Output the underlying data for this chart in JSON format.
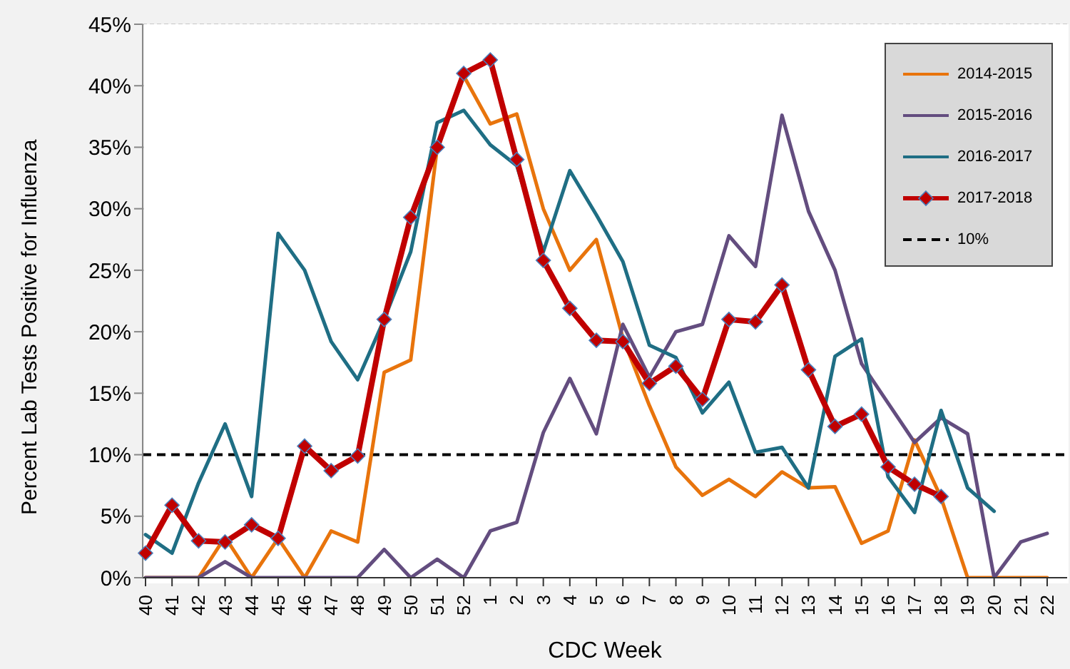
{
  "chart_data": {
    "type": "line",
    "xlabel": "CDC Week",
    "ylabel": "Percent Lab Tests Positive for Influenza",
    "categories": [
      "40",
      "41",
      "42",
      "43",
      "44",
      "45",
      "46",
      "47",
      "48",
      "49",
      "50",
      "51",
      "52",
      "1",
      "2",
      "3",
      "4",
      "5",
      "6",
      "7",
      "8",
      "9",
      "10",
      "11",
      "12",
      "13",
      "14",
      "15",
      "16",
      "17",
      "18",
      "19",
      "20",
      "21",
      "22"
    ],
    "series": [
      {
        "name": "2014-2015",
        "color": "#e8740c",
        "values": [
          0,
          0,
          0,
          3.3,
          0,
          3.2,
          0,
          3.8,
          2.9,
          16.7,
          17.7,
          35,
          40.8,
          36.9,
          37.7,
          30,
          25,
          27.5,
          19.5,
          14,
          9,
          6.7,
          8,
          6.6,
          8.6,
          7.3,
          7.4,
          2.8,
          3.8,
          11.2,
          6.5,
          0,
          0,
          0,
          0
        ]
      },
      {
        "name": "2015-2016",
        "color": "#634d7f",
        "values": [
          0,
          0,
          0,
          1.3,
          0,
          0,
          0,
          0,
          0,
          2.3,
          0,
          1.5,
          0,
          3.8,
          4.5,
          11.8,
          16.2,
          11.7,
          20.6,
          16.3,
          20,
          20.6,
          27.8,
          25.3,
          37.6,
          29.8,
          25,
          17.4,
          14.2,
          11,
          13,
          11.7,
          0,
          2.9,
          3.6
        ]
      },
      {
        "name": "2016-2017",
        "color": "#1f6e84",
        "values": [
          3.5,
          2,
          7.7,
          12.5,
          6.6,
          28,
          25,
          19.2,
          16.1,
          21,
          26.5,
          37,
          38,
          35.2,
          33.5,
          26.5,
          33.1,
          29.5,
          25.7,
          18.9,
          17.9,
          13.4,
          15.9,
          10.2,
          10.6,
          7.3,
          18,
          19.4,
          8.2,
          5.3,
          13.6,
          7.3,
          5.4,
          null,
          null
        ]
      },
      {
        "name": "2017-2018",
        "color": "#c00000",
        "marker": "diamond",
        "values": [
          2,
          5.9,
          3,
          2.9,
          4.3,
          3.2,
          10.7,
          8.7,
          9.9,
          21,
          29.3,
          35,
          41,
          42.1,
          34,
          25.8,
          21.9,
          19.3,
          19.2,
          15.8,
          17.2,
          14.5,
          21,
          20.8,
          23.8,
          16.9,
          12.3,
          13.3,
          9,
          7.6,
          6.6,
          null,
          null,
          null,
          null
        ]
      }
    ],
    "ref_lines": [
      {
        "axis": "y",
        "value": 10,
        "label": "10%",
        "color": "#000000",
        "line_style": "dashed"
      }
    ],
    "ylim": [
      0,
      45
    ],
    "yticks": [
      {
        "value": 0,
        "label": "0%"
      },
      {
        "value": 5,
        "label": "5%"
      },
      {
        "value": 10,
        "label": "10%"
      },
      {
        "value": 15,
        "label": "15%"
      },
      {
        "value": 20,
        "label": "20%"
      },
      {
        "value": 25,
        "label": "25%"
      },
      {
        "value": 30,
        "label": "30%"
      },
      {
        "value": 35,
        "label": "35%"
      },
      {
        "value": 40,
        "label": "40%"
      },
      {
        "value": 45,
        "label": "45%"
      }
    ],
    "grid": "y",
    "legend": "top right"
  }
}
